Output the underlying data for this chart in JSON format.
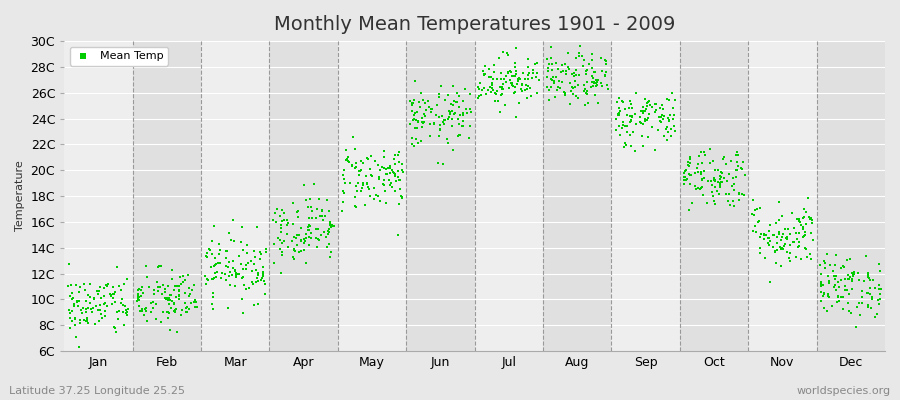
{
  "title": "Monthly Mean Temperatures 1901 - 2009",
  "ylabel": "Temperature",
  "xlabel_left": "Latitude 37.25 Longitude 25.25",
  "xlabel_right": "worldspecies.org",
  "legend_label": "Mean Temp",
  "dot_color": "#00cc00",
  "background_color": "#e8e8e8",
  "plot_bg_color": "#e8e8e8",
  "stripe_color_light": "#eeeeee",
  "stripe_color_dark": "#e0e0e0",
  "ylim": [
    6,
    30
  ],
  "ytick_labels": [
    "6C",
    "8C",
    "10C",
    "12C",
    "14C",
    "16C",
    "18C",
    "20C",
    "22C",
    "24C",
    "26C",
    "28C",
    "30C"
  ],
  "ytick_values": [
    6,
    8,
    10,
    12,
    14,
    16,
    18,
    20,
    22,
    24,
    26,
    28,
    30
  ],
  "months": [
    "Jan",
    "Feb",
    "Mar",
    "Apr",
    "May",
    "Jun",
    "Jul",
    "Aug",
    "Sep",
    "Oct",
    "Nov",
    "Dec"
  ],
  "month_mean_temps": [
    9.5,
    10.0,
    12.5,
    15.5,
    19.5,
    24.0,
    27.0,
    27.0,
    24.0,
    19.5,
    15.0,
    11.0
  ],
  "month_std_temps": [
    1.2,
    1.2,
    1.3,
    1.3,
    1.3,
    1.2,
    1.0,
    1.0,
    1.1,
    1.2,
    1.3,
    1.2
  ],
  "num_years": 109,
  "random_seed": 42,
  "title_fontsize": 14,
  "axis_label_fontsize": 8,
  "tick_fontsize": 9,
  "marker_size": 4,
  "dpi": 100
}
